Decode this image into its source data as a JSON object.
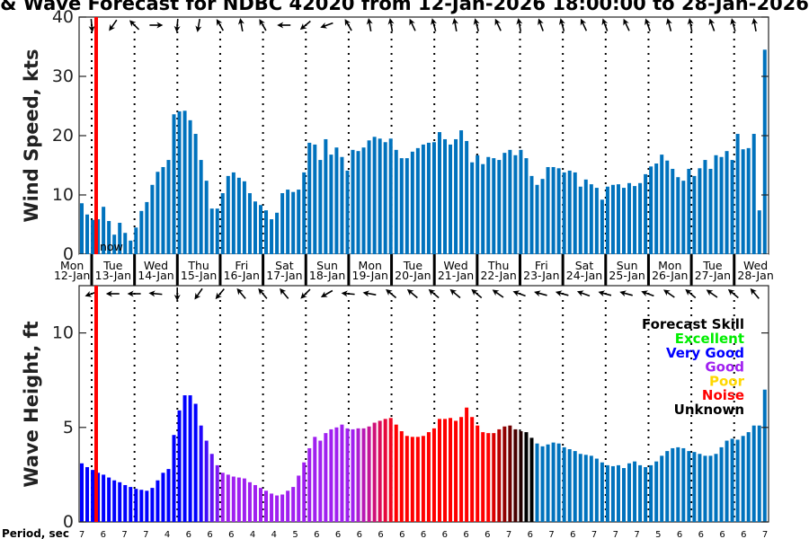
{
  "chart_data": [
    {
      "type": "bar",
      "title": "& Wave Forecast for NDBC 42020 from 12-Jan-2026 18:00:00 to 28-Jan-2026",
      "ylabel": "Wind Speed, kts",
      "ylim": [
        0,
        40
      ],
      "yticks": [
        "0",
        "10",
        "20",
        "30",
        "40"
      ],
      "bar_color": "#0072bd",
      "interval_hours": 3,
      "values": [
        8.6,
        6.7,
        5.8,
        5.9,
        8.0,
        5.6,
        3.3,
        5.3,
        3.6,
        2.3,
        4.5,
        7.3,
        8.8,
        11.7,
        13.9,
        14.7,
        15.9,
        23.6,
        24.1,
        24.2,
        22.6,
        20.3,
        15.9,
        12.4,
        7.7,
        7.7,
        10.3,
        13.2,
        13.8,
        12.9,
        12.3,
        10.3,
        8.9,
        8.3,
        7.4,
        5.9,
        7.0,
        10.3,
        10.9,
        10.5,
        10.9,
        13.8,
        18.8,
        18.5,
        15.9,
        19.4,
        16.8,
        18.0,
        16.4,
        14.1,
        17.6,
        17.4,
        18.0,
        19.2,
        19.8,
        19.5,
        18.9,
        19.5,
        17.6,
        16.2,
        16.2,
        17.3,
        17.9,
        18.5,
        18.8,
        18.9,
        20.6,
        19.4,
        18.5,
        19.4,
        20.9,
        19.1,
        15.5,
        16.7,
        15.2,
        16.4,
        16.2,
        15.9,
        17.1,
        17.6,
        16.7,
        17.6,
        16.2,
        13.2,
        11.7,
        12.7,
        14.7,
        14.7,
        14.5,
        13.8,
        14.1,
        13.8,
        11.4,
        12.6,
        11.8,
        11.2,
        9.2,
        11.4,
        11.7,
        11.8,
        11.2,
        12.0,
        11.5,
        12.0,
        13.5,
        14.8,
        15.3,
        16.8,
        15.8,
        14.4,
        13.0,
        12.4,
        14.4,
        13.2,
        14.5,
        15.9,
        14.4,
        16.7,
        16.4,
        17.4,
        15.9,
        20.3,
        17.7,
        17.9,
        20.3,
        7.4,
        34.5
      ],
      "direction_arrows_deg": [
        175,
        215,
        315,
        90,
        185,
        190,
        330,
        350,
        330,
        270,
        230,
        250,
        330,
        350,
        350,
        335,
        345,
        350,
        345,
        335,
        350,
        340,
        345,
        335,
        340,
        335,
        340,
        345,
        350,
        340,
        345,
        350
      ]
    },
    {
      "type": "bar",
      "ylabel": "Wave Height, ft",
      "ylim": [
        0,
        12.5
      ],
      "yticks": [
        "0",
        "5",
        "10"
      ],
      "interval_hours": 3,
      "values": [
        3.1,
        2.9,
        2.75,
        2.6,
        2.5,
        2.35,
        2.2,
        2.1,
        1.95,
        1.85,
        1.75,
        1.7,
        1.65,
        1.8,
        2.2,
        2.6,
        2.8,
        4.6,
        5.9,
        6.7,
        6.7,
        6.25,
        5.1,
        4.3,
        3.6,
        3.0,
        2.6,
        2.5,
        2.4,
        2.35,
        2.3,
        2.1,
        1.95,
        1.8,
        1.65,
        1.5,
        1.4,
        1.45,
        1.65,
        1.85,
        2.45,
        3.15,
        3.9,
        4.5,
        4.3,
        4.7,
        4.9,
        5.0,
        5.15,
        4.95,
        4.9,
        4.95,
        4.95,
        5.05,
        5.25,
        5.35,
        5.45,
        5.5,
        5.15,
        4.8,
        4.55,
        4.5,
        4.5,
        4.55,
        4.75,
        4.95,
        5.45,
        5.45,
        5.5,
        5.35,
        5.55,
        6.05,
        5.55,
        5.1,
        4.75,
        4.7,
        4.7,
        4.9,
        5.05,
        5.1,
        4.9,
        4.8,
        4.75,
        4.45,
        4.15,
        4.0,
        4.1,
        4.2,
        4.15,
        3.95,
        3.85,
        3.75,
        3.6,
        3.55,
        3.5,
        3.35,
        3.15,
        3.0,
        2.95,
        3.0,
        2.85,
        3.1,
        3.2,
        3.0,
        2.9,
        3.0,
        3.2,
        3.5,
        3.75,
        3.9,
        3.95,
        3.9,
        3.75,
        3.7,
        3.6,
        3.5,
        3.5,
        3.6,
        3.95,
        4.3,
        4.4,
        4.35,
        4.55,
        4.75,
        5.1,
        5.1,
        7.0
      ],
      "skill_color_stops": [
        {
          "index": 0,
          "color": "#0000ff"
        },
        {
          "index": 21,
          "color": "#0000ff"
        },
        {
          "index": 26,
          "color": "#a020f0"
        },
        {
          "index": 50,
          "color": "#a020f0"
        },
        {
          "index": 58,
          "color": "#ff0000"
        },
        {
          "index": 75,
          "color": "#ff0000"
        },
        {
          "index": 82,
          "color": "#000000"
        },
        {
          "index": 83,
          "color": "#000000"
        },
        {
          "index": 84,
          "color": "#0072bd"
        },
        {
          "index": 126,
          "color": "#0072bd"
        }
      ],
      "direction_arrows_deg": [
        250,
        270,
        270,
        275,
        180,
        215,
        220,
        320,
        320,
        320,
        225,
        240,
        275,
        280,
        310,
        310,
        310,
        310,
        310,
        305,
        290,
        285,
        285,
        290,
        285,
        285,
        290,
        305,
        310,
        305,
        310,
        320
      ],
      "legend": {
        "title": "Forecast Skill",
        "position": "top-right",
        "items": [
          {
            "label": "Excellent",
            "color": "#00ee00"
          },
          {
            "label": "Very Good",
            "color": "#0000ff"
          },
          {
            "label": "Good",
            "color": "#a020f0"
          },
          {
            "label": "Poor",
            "color": "#ffd700"
          },
          {
            "label": "Noise",
            "color": "#ff0000"
          },
          {
            "label": "Unknown",
            "color": "#000000"
          }
        ]
      }
    }
  ],
  "now_label": "now",
  "now_color": "#ff0000",
  "days": [
    {
      "dow": "Mon",
      "date": "12-Jan"
    },
    {
      "dow": "Tue",
      "date": "13-Jan"
    },
    {
      "dow": "Wed",
      "date": "14-Jan"
    },
    {
      "dow": "Thu",
      "date": "15-Jan"
    },
    {
      "dow": "Fri",
      "date": "16-Jan"
    },
    {
      "dow": "Sat",
      "date": "17-Jan"
    },
    {
      "dow": "Sun",
      "date": "18-Jan"
    },
    {
      "dow": "Mon",
      "date": "19-Jan"
    },
    {
      "dow": "Tue",
      "date": "20-Jan"
    },
    {
      "dow": "Wed",
      "date": "21-Jan"
    },
    {
      "dow": "Thu",
      "date": "22-Jan"
    },
    {
      "dow": "Fri",
      "date": "23-Jan"
    },
    {
      "dow": "Sat",
      "date": "24-Jan"
    },
    {
      "dow": "Sun",
      "date": "25-Jan"
    },
    {
      "dow": "Mon",
      "date": "26-Jan"
    },
    {
      "dow": "Tue",
      "date": "27-Jan"
    },
    {
      "dow": "Wed",
      "date": "28-Jan"
    }
  ],
  "period": {
    "label": "Period, sec",
    "values": [
      "7",
      "6",
      "7",
      "7",
      "4",
      "6",
      "6",
      "6",
      "4",
      "4",
      "5",
      "6",
      "6",
      "6",
      "6",
      "6",
      "6",
      "6",
      "6",
      "6",
      "7",
      "6",
      "7",
      "6",
      "7",
      "7",
      "7",
      "5",
      "6",
      "6",
      "6",
      "6",
      "7"
    ]
  }
}
